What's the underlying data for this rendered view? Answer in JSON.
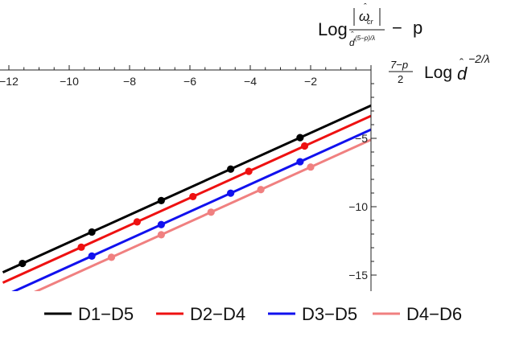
{
  "chart_data": {
    "type": "line",
    "ylabel_parts": {
      "log": "Log",
      "numerator": "ω",
      "numerator_sub": "cr",
      "denominator": "d",
      "denominator_exp": "(5−p)/λ",
      "minus": "−",
      "p": "p"
    },
    "xlabel_parts": {
      "frac_numerator": "7−p",
      "frac_denominator": "2",
      "log": "Log",
      "base": "d",
      "exp": "−2/λ"
    },
    "xlim": [
      -12.2,
      0.2
    ],
    "ylim": [
      -15.6,
      0.8
    ],
    "x_ticks": [
      {
        "value": -12,
        "label": "−12"
      },
      {
        "value": -10,
        "label": "−10"
      },
      {
        "value": -8,
        "label": "−8"
      },
      {
        "value": -6,
        "label": "−6"
      },
      {
        "value": -4,
        "label": "−4"
      },
      {
        "value": -2,
        "label": "−2"
      }
    ],
    "y_ticks": [
      {
        "value": -5,
        "label": "−5"
      },
      {
        "value": -10,
        "label": "−10"
      },
      {
        "value": -15,
        "label": "−15"
      }
    ],
    "series": [
      {
        "name": "D1−D5",
        "color": "#000000",
        "intercept": -2.6,
        "slope": 1.0,
        "points": [
          [
            -11.55,
            -14.15
          ],
          [
            -9.25,
            -11.85
          ],
          [
            -6.95,
            -9.55
          ],
          [
            -4.65,
            -7.25
          ],
          [
            -2.35,
            -4.95
          ]
        ]
      },
      {
        "name": "D2−D4",
        "color": "#ee1111",
        "intercept": -3.36,
        "slope": 1.0,
        "points": [
          [
            -9.6,
            -12.96
          ],
          [
            -7.75,
            -11.11
          ],
          [
            -5.9,
            -9.26
          ],
          [
            -4.05,
            -7.41
          ],
          [
            -2.2,
            -5.56
          ]
        ]
      },
      {
        "name": "D3−D5",
        "color": "#1111ee",
        "intercept": -4.36,
        "slope": 1.0,
        "points": [
          [
            -9.25,
            -13.61
          ],
          [
            -6.95,
            -11.31
          ],
          [
            -4.65,
            -9.01
          ],
          [
            -2.35,
            -6.71
          ]
        ]
      },
      {
        "name": "D4−D6",
        "color": "#f08080",
        "intercept": -5.1,
        "slope": 1.0,
        "points": [
          [
            -8.6,
            -13.7
          ],
          [
            -6.95,
            -12.05
          ],
          [
            -5.3,
            -10.4
          ],
          [
            -3.65,
            -8.75
          ],
          [
            -2.0,
            -7.1
          ]
        ]
      }
    ],
    "legend_position": "bottom",
    "grid": false
  }
}
